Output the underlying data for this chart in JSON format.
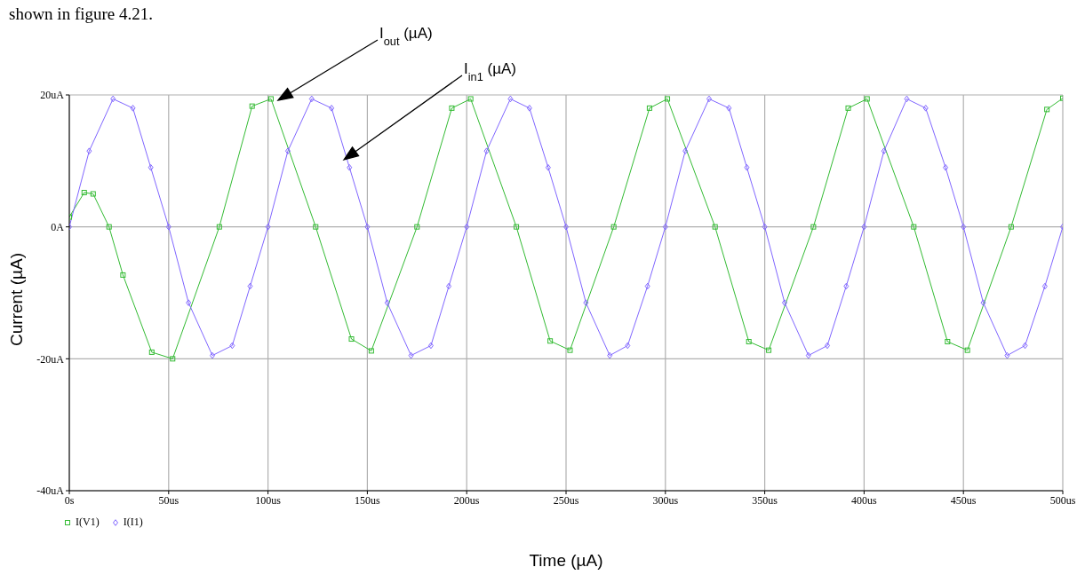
{
  "chart_data": {
    "type": "line",
    "xlabel": "Time (µA)",
    "ylabel": "Current (µA)",
    "annotations": [
      "shown in figure 4.21.",
      "I$_{out}$ (µA)",
      "I$_{in1}$ (µA)"
    ],
    "xlim": [
      0,
      500
    ],
    "ylim": [
      -40,
      20
    ],
    "xticks": [
      {
        "value": 0,
        "label": "0s"
      },
      {
        "value": 50,
        "label": "50us"
      },
      {
        "value": 100,
        "label": "100us"
      },
      {
        "value": 150,
        "label": "150us"
      },
      {
        "value": 200,
        "label": "200us"
      },
      {
        "value": 250,
        "label": "250us"
      },
      {
        "value": 300,
        "label": "300us"
      },
      {
        "value": 350,
        "label": "350us"
      },
      {
        "value": 400,
        "label": "400us"
      },
      {
        "value": 450,
        "label": "450us"
      },
      {
        "value": 500,
        "label": "500us"
      }
    ],
    "yticks": [
      {
        "value": -40,
        "label": "-40uA"
      },
      {
        "value": -20,
        "label": "-20uA"
      },
      {
        "value": 0,
        "label": "0A"
      },
      {
        "value": 20,
        "label": "20uA"
      }
    ],
    "grid": true,
    "legend": "bottom left",
    "line_style": "solid",
    "series": [
      {
        "name": "I(V1)",
        "color": "#33bb33",
        "marker": "square",
        "x": [
          0,
          7.5,
          12,
          20,
          27,
          41.5,
          52,
          75.5,
          92,
          101.5,
          124,
          142,
          152,
          175,
          192.5,
          202,
          225,
          242,
          252,
          274,
          292,
          301,
          325,
          342,
          352,
          374.5,
          392,
          401.5,
          425,
          442,
          452,
          474,
          492,
          500
        ],
        "values": [
          1.5,
          5.2,
          5,
          0,
          -7.3,
          -19,
          -20,
          0,
          18.3,
          19.4,
          0,
          -17,
          -18.8,
          0,
          18,
          19.4,
          0,
          -17.3,
          -18.7,
          0,
          18,
          19.4,
          0,
          -17.4,
          -18.7,
          0,
          18,
          19.4,
          0,
          -17.4,
          -18.7,
          0,
          17.8,
          19.5
        ]
      },
      {
        "name": "I(I1)",
        "color": "#8066ff",
        "marker": "diamond",
        "x": [
          0,
          10,
          22,
          32,
          41,
          50,
          60,
          72,
          82,
          91,
          100,
          110,
          122,
          132,
          141,
          150,
          160,
          172,
          182,
          191,
          200,
          210,
          222,
          231.6,
          241,
          250,
          260,
          272,
          281,
          291,
          300,
          310,
          322,
          332,
          341,
          350,
          360,
          372,
          381.5,
          391,
          400,
          410,
          421.5,
          431,
          441,
          450,
          460,
          472,
          481,
          491,
          500
        ],
        "values": [
          0,
          11.5,
          19.4,
          18,
          9,
          0,
          -11.5,
          -19.5,
          -18,
          -9,
          0,
          11.5,
          19.4,
          18,
          9,
          0,
          -11.5,
          -19.5,
          -18,
          -9,
          0,
          11.5,
          19.4,
          18,
          9,
          0,
          -11.5,
          -19.5,
          -18,
          -9,
          0,
          11.5,
          19.4,
          18,
          9,
          0,
          -11.5,
          -19.5,
          -18,
          -9,
          0,
          11.5,
          19.4,
          18,
          9,
          0,
          -11.5,
          -19.5,
          -18,
          -9,
          0
        ]
      }
    ]
  }
}
